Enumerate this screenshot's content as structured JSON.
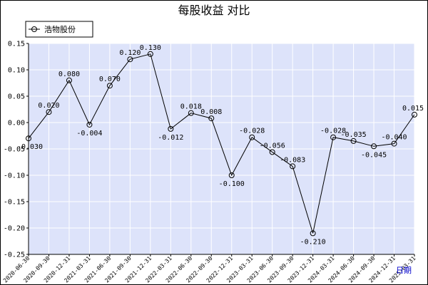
{
  "chart_data": {
    "type": "line",
    "title": "每股收益  对比",
    "xlabel": "日期",
    "ylabel": "",
    "ylim": [
      -0.25,
      0.15
    ],
    "yticks": [
      0.15,
      0.1,
      0.05,
      0.0,
      -0.05,
      -0.1,
      -0.15,
      -0.2,
      -0.25
    ],
    "ytick_labels": [
      "0.15",
      "0.10",
      "0.05",
      "0.00",
      "-0.05",
      "-0.10",
      "-0.15",
      "-0.20",
      "-0.25"
    ],
    "grid": true,
    "legend_position": "top-left",
    "categories": [
      "2020-06-30",
      "2020-09-30",
      "2020-12-31",
      "2021-03-31",
      "2021-06-30",
      "2021-09-30",
      "2021-12-31",
      "2022-03-31",
      "2022-06-30",
      "2022-09-30",
      "2022-12-31",
      "2023-03-31",
      "2023-06-30",
      "2023-09-30",
      "2023-12-31",
      "2024-03-31",
      "2024-06-30",
      "2024-09-30",
      "2024-12-31",
      "2025-03-31"
    ],
    "series": [
      {
        "name": "浩物股份",
        "color": "#000000",
        "values": [
          -0.03,
          0.02,
          0.08,
          -0.004,
          0.07,
          0.12,
          0.13,
          -0.012,
          0.018,
          0.008,
          -0.1,
          -0.028,
          -0.056,
          -0.083,
          -0.21,
          -0.028,
          -0.035,
          -0.045,
          -0.04,
          0.015
        ],
        "labels": [
          "-0.030",
          "0.020",
          "0.080",
          "-0.004",
          "0.070",
          "0.120",
          "0.130",
          "-0.012",
          "0.018",
          "0.008",
          "-0.100",
          "-0.028",
          "-0.056",
          "-0.083",
          "-0.210",
          "-0.028",
          "-0.035",
          "-0.045",
          "-0.040",
          "0.015"
        ]
      }
    ],
    "colors": {
      "plot_background": "#dde3fa",
      "grid": "#ffffff",
      "line": "#000000"
    }
  }
}
